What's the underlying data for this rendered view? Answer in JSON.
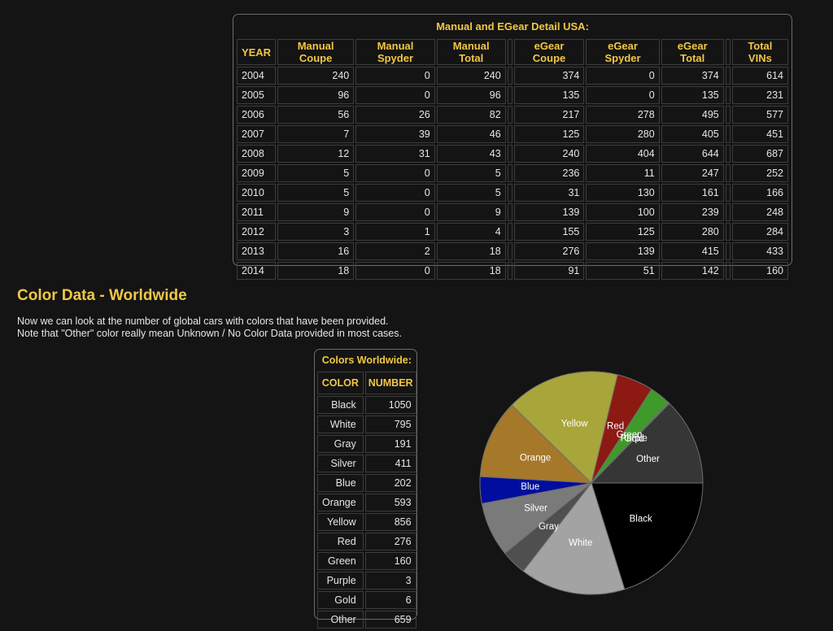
{
  "usa_table": {
    "caption": "Manual and EGear Detail USA:",
    "headers": [
      "YEAR",
      "Manual Coupe",
      "Manual Spyder",
      "Manual Total",
      "eGear Coupe",
      "eGear Spyder",
      "eGear Total",
      "Total VINs"
    ],
    "rows": [
      [
        "2004",
        "240",
        "0",
        "240",
        "374",
        "0",
        "374",
        "614"
      ],
      [
        "2005",
        "96",
        "0",
        "96",
        "135",
        "0",
        "135",
        "231"
      ],
      [
        "2006",
        "56",
        "26",
        "82",
        "217",
        "278",
        "495",
        "577"
      ],
      [
        "2007",
        "7",
        "39",
        "46",
        "125",
        "280",
        "405",
        "451"
      ],
      [
        "2008",
        "12",
        "31",
        "43",
        "240",
        "404",
        "644",
        "687"
      ],
      [
        "2009",
        "5",
        "0",
        "5",
        "236",
        "11",
        "247",
        "252"
      ],
      [
        "2010",
        "5",
        "0",
        "5",
        "31",
        "130",
        "161",
        "166"
      ],
      [
        "2011",
        "9",
        "0",
        "9",
        "139",
        "100",
        "239",
        "248"
      ],
      [
        "2012",
        "3",
        "1",
        "4",
        "155",
        "125",
        "280",
        "284"
      ],
      [
        "2013",
        "16",
        "2",
        "18",
        "276",
        "139",
        "415",
        "433"
      ],
      [
        "2014",
        "18",
        "0",
        "18",
        "91",
        "51",
        "142",
        "160"
      ]
    ]
  },
  "section": {
    "title": "Color Data - Worldwide",
    "intro_line1": "Now we can look at the number of global cars with colors that have been provided.",
    "intro_line2": "Note that \"Other\" color really mean Unknown / No Color Data provided in most cases."
  },
  "colors_table": {
    "caption": "Colors Worldwide:",
    "headers": [
      "COLOR",
      "NUMBER"
    ],
    "rows": [
      [
        "Black",
        "1050"
      ],
      [
        "White",
        "795"
      ],
      [
        "Gray",
        "191"
      ],
      [
        "Silver",
        "411"
      ],
      [
        "Blue",
        "202"
      ],
      [
        "Orange",
        "593"
      ],
      [
        "Yellow",
        "856"
      ],
      [
        "Red",
        "276"
      ],
      [
        "Green",
        "160"
      ],
      [
        "Purple",
        "3"
      ],
      [
        "Gold",
        "6"
      ],
      [
        "Other",
        "659"
      ]
    ]
  },
  "chart_data": {
    "type": "pie",
    "title": "",
    "categories": [
      "Black",
      "White",
      "Gray",
      "Silver",
      "Blue",
      "Orange",
      "Yellow",
      "Red",
      "Green",
      "Purple",
      "Gold",
      "Other"
    ],
    "values": [
      1050,
      795,
      191,
      411,
      202,
      593,
      856,
      276,
      160,
      3,
      6,
      659
    ],
    "colors": [
      "#000000",
      "#a3a3a3",
      "#4f4f4f",
      "#7a7a7a",
      "#000d9e",
      "#a6782a",
      "#a8a53a",
      "#8c1a12",
      "#3f9a2a",
      "#6a2a8a",
      "#b8932a",
      "#363636"
    ],
    "labels": [
      "Black",
      "White",
      "Gray",
      "Silver",
      "Blue",
      "Orange",
      "Yellow",
      "Red",
      "Green",
      "Purple",
      "Gold",
      "Other"
    ],
    "legend": "none"
  }
}
